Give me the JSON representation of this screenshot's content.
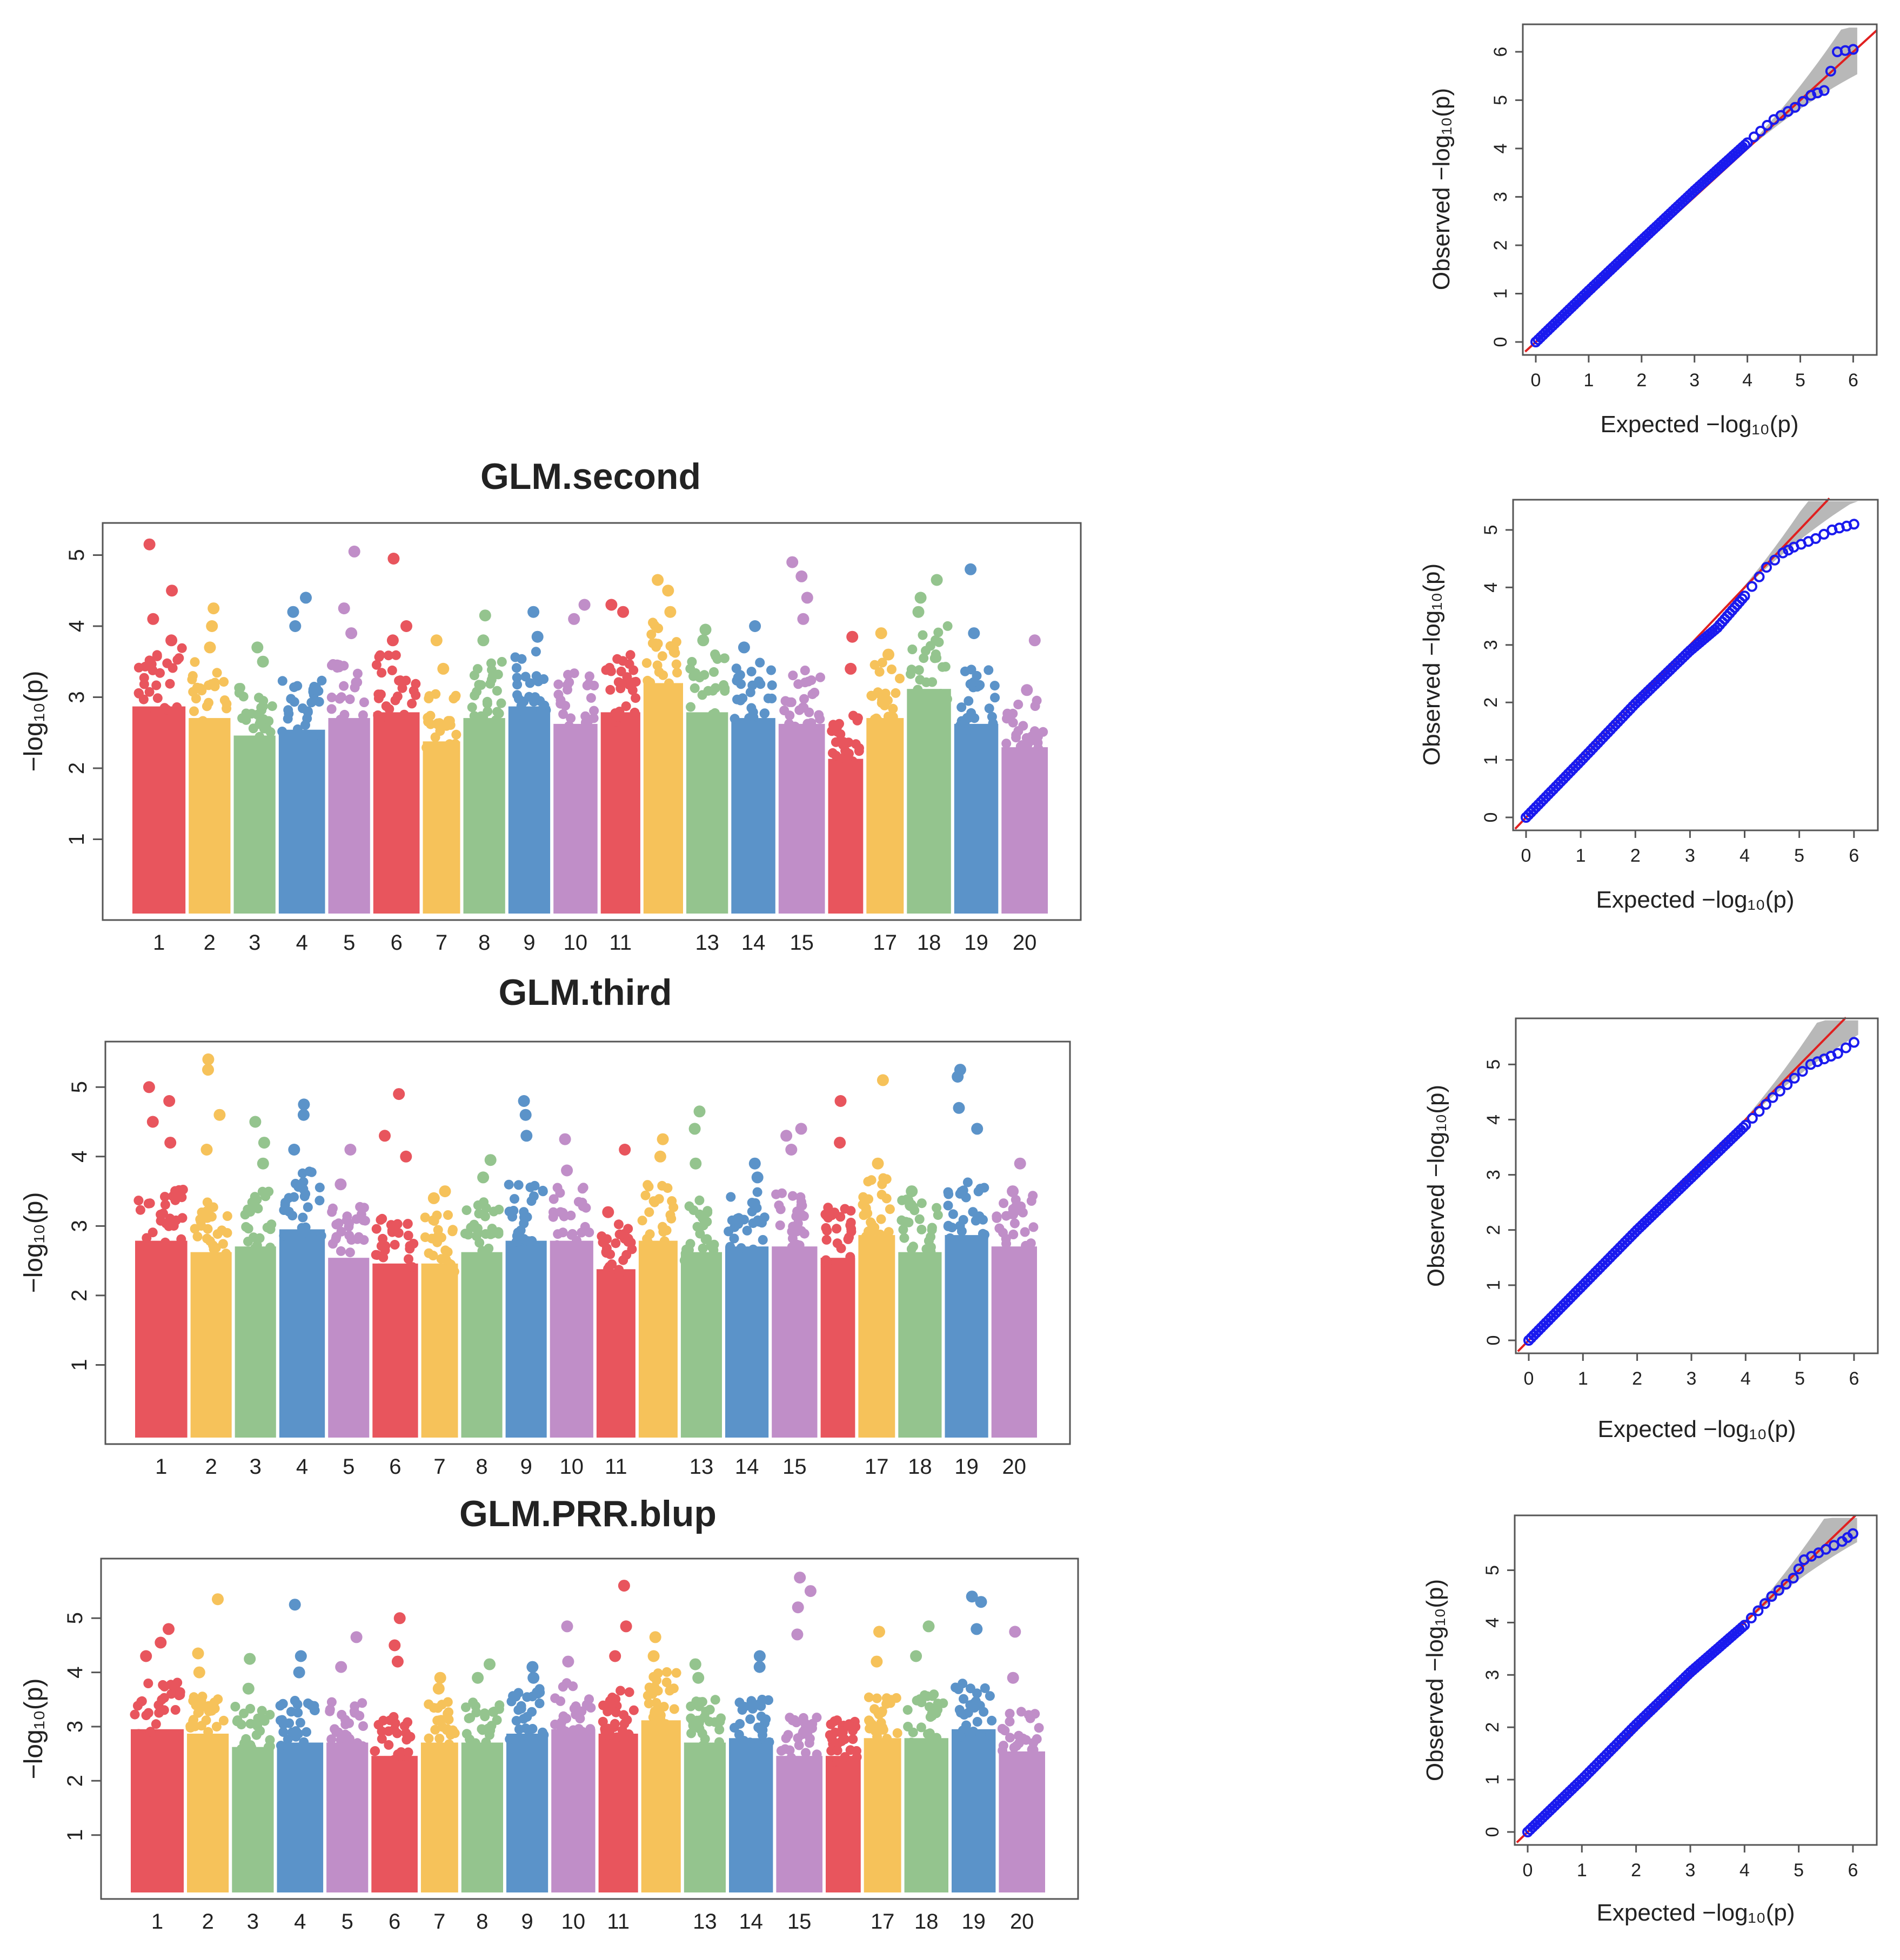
{
  "figure": {
    "colors": {
      "chromosome_cycle": [
        "#e8555d",
        "#f6c25a",
        "#94c48e",
        "#5b93c9",
        "#c08ec8"
      ],
      "qq_points": "#1a1aee",
      "qq_line": "#e02020",
      "qq_band": "#b8b8b8",
      "axis": "#555555"
    },
    "y_axis_label": "−log₁₀(p)",
    "qq_x_label": "Expected −log₁₀(p)",
    "qq_y_label": "Observed −log₁₀(p)"
  },
  "chart_data": [
    {
      "id": "manhattan-second",
      "type": "scatter",
      "title": "GLM.second",
      "ylabel": "−log₁₀(p)",
      "ylim": [
        0,
        5.3
      ],
      "y_ticks": [
        "1",
        "2",
        "3",
        "4",
        "5"
      ],
      "chromosomes": [
        "1",
        "2",
        "3",
        "4",
        "5",
        "6",
        "7",
        "8",
        "9",
        "10",
        "11",
        "12",
        "13",
        "14",
        "15",
        "16",
        "17",
        "18",
        "19",
        "20"
      ],
      "x_tick_labels": [
        "1",
        "2",
        "3",
        "4",
        "5",
        "6",
        "7",
        "8",
        "9",
        "10",
        "11",
        "",
        "13",
        "14",
        "15",
        "",
        "17",
        "18",
        "19",
        "20"
      ],
      "chrom_width": [
        1.25,
        1.0,
        1.0,
        1.1,
        1.0,
        1.1,
        0.9,
        1.0,
        1.0,
        1.05,
        0.95,
        0.95,
        1.0,
        1.05,
        1.1,
        0.85,
        0.9,
        1.05,
        1.05,
        1.1
      ],
      "chrom_column_top": [
        3.5,
        3.3,
        3.0,
        3.1,
        3.3,
        3.4,
        2.9,
        3.3,
        3.5,
        3.2,
        3.4,
        3.9,
        3.4,
        3.3,
        3.2,
        2.6,
        3.3,
        3.8,
        3.2,
        2.8
      ],
      "top_hits": [
        [
          5.15,
          4.5,
          4.1,
          3.8
        ],
        [
          4.25,
          4.0,
          3.7
        ],
        [
          3.7,
          3.5
        ],
        [
          4.4,
          4.2,
          4.0
        ],
        [
          5.05,
          4.25,
          3.9
        ],
        [
          4.95,
          4.0,
          3.8
        ],
        [
          3.8,
          3.4
        ],
        [
          4.15,
          3.8
        ],
        [
          4.2,
          3.85
        ],
        [
          4.3,
          4.1
        ],
        [
          4.3,
          4.2
        ],
        [
          4.65,
          4.5,
          4.2
        ],
        [
          3.95,
          3.8
        ],
        [
          4.0,
          3.7
        ],
        [
          4.9,
          4.7,
          4.4,
          4.1
        ],
        [
          3.85,
          3.4
        ],
        [
          3.9,
          3.6
        ],
        [
          4.65,
          4.4,
          4.2
        ],
        [
          4.8,
          3.9
        ],
        [
          3.8,
          3.1
        ]
      ]
    },
    {
      "id": "manhattan-third",
      "type": "scatter",
      "title": "GLM.third",
      "ylabel": "−log₁₀(p)",
      "ylim": [
        0,
        5.5
      ],
      "y_ticks": [
        "1",
        "2",
        "3",
        "4",
        "5"
      ],
      "chromosomes": [
        "1",
        "2",
        "3",
        "4",
        "5",
        "6",
        "7",
        "8",
        "9",
        "10",
        "11",
        "12",
        "13",
        "14",
        "15",
        "16",
        "17",
        "18",
        "19",
        "20"
      ],
      "x_tick_labels": [
        "1",
        "2",
        "3",
        "4",
        "5",
        "6",
        "7",
        "8",
        "9",
        "10",
        "11",
        "",
        "13",
        "14",
        "15",
        "",
        "17",
        "18",
        "19",
        "20"
      ],
      "chrom_width": [
        1.25,
        1.0,
        1.0,
        1.1,
        1.0,
        1.1,
        0.9,
        1.0,
        1.0,
        1.05,
        0.95,
        0.95,
        1.0,
        1.05,
        1.1,
        0.85,
        0.9,
        1.05,
        1.05,
        1.1
      ],
      "chrom_column_top": [
        3.4,
        3.2,
        3.3,
        3.6,
        3.1,
        3.0,
        3.0,
        3.2,
        3.4,
        3.4,
        2.9,
        3.4,
        3.2,
        3.3,
        3.3,
        3.1,
        3.5,
        3.2,
        3.5,
        3.3
      ],
      "top_hits": [
        [
          5.0,
          4.8,
          4.5,
          4.2
        ],
        [
          5.4,
          5.25,
          4.6,
          4.1
        ],
        [
          4.5,
          4.2,
          3.9
        ],
        [
          4.75,
          4.6,
          4.1
        ],
        [
          4.1,
          3.6
        ],
        [
          4.9,
          4.3,
          4.0
        ],
        [
          3.5,
          3.4
        ],
        [
          3.95,
          3.7
        ],
        [
          4.8,
          4.6,
          4.3
        ],
        [
          4.25,
          3.8
        ],
        [
          4.1,
          3.2
        ],
        [
          4.25,
          4.0
        ],
        [
          4.65,
          4.4,
          3.9
        ],
        [
          3.9,
          3.7
        ],
        [
          4.4,
          4.3,
          4.1
        ],
        [
          4.8,
          4.2
        ],
        [
          5.1,
          3.9
        ],
        [
          3.5,
          3.3
        ],
        [
          5.25,
          5.15,
          4.7,
          4.4
        ],
        [
          3.9,
          3.5
        ]
      ]
    },
    {
      "id": "manhattan-prr",
      "type": "scatter",
      "title": "GLM.PRR.blup",
      "ylabel": "−log₁₀(p)",
      "ylim": [
        0,
        5.9
      ],
      "y_ticks": [
        "1",
        "2",
        "3",
        "4",
        "5"
      ],
      "chromosomes": [
        "1",
        "2",
        "3",
        "4",
        "5",
        "6",
        "7",
        "8",
        "9",
        "10",
        "11",
        "12",
        "13",
        "14",
        "15",
        "16",
        "17",
        "18",
        "19",
        "20"
      ],
      "x_tick_labels": [
        "1",
        "2",
        "3",
        "4",
        "5",
        "6",
        "7",
        "8",
        "9",
        "10",
        "11",
        "",
        "13",
        "14",
        "15",
        "",
        "17",
        "18",
        "19",
        "20"
      ],
      "chrom_width": [
        1.25,
        1.0,
        1.0,
        1.1,
        1.0,
        1.1,
        0.9,
        1.0,
        1.0,
        1.05,
        0.95,
        0.95,
        1.0,
        1.05,
        1.1,
        0.85,
        0.9,
        1.05,
        1.05,
        1.1
      ],
      "chrom_column_top": [
        3.6,
        3.5,
        3.2,
        3.3,
        3.3,
        3.0,
        3.3,
        3.3,
        3.5,
        3.6,
        3.5,
        3.8,
        3.3,
        3.4,
        3.0,
        3.0,
        3.4,
        3.4,
        3.6,
        3.1
      ],
      "top_hits": [
        [
          4.8,
          4.55,
          4.3
        ],
        [
          5.35,
          4.35,
          4.0
        ],
        [
          4.25,
          3.7
        ],
        [
          5.25,
          4.3,
          4.0
        ],
        [
          4.65,
          4.1
        ],
        [
          5.0,
          4.5,
          4.2
        ],
        [
          3.9,
          3.7
        ],
        [
          4.15,
          3.9
        ],
        [
          4.1,
          3.9
        ],
        [
          4.85,
          4.2
        ],
        [
          5.6,
          4.85,
          4.3
        ],
        [
          4.65,
          4.3
        ],
        [
          4.15,
          3.9
        ],
        [
          4.3,
          4.1
        ],
        [
          5.75,
          5.5,
          5.2,
          4.7
        ],
        [
          3.0,
          2.9
        ],
        [
          4.75,
          4.2
        ],
        [
          4.85,
          4.3
        ],
        [
          5.4,
          5.3,
          4.8
        ],
        [
          4.75,
          3.9
        ]
      ]
    },
    {
      "id": "qq-1",
      "type": "scatter",
      "xlabel": "Expected −log₁₀(p)",
      "ylabel": "Observed −log₁₀(p)",
      "xlim": [
        0,
        6.2
      ],
      "ylim": [
        0,
        6.3
      ],
      "x_ticks": [
        "0",
        "1",
        "2",
        "3",
        "4",
        "5",
        "6"
      ],
      "y_ticks": [
        "0",
        "1",
        "2",
        "3",
        "4",
        "5",
        "6"
      ],
      "points": [
        [
          0,
          0
        ],
        [
          1,
          1.06
        ],
        [
          2,
          2.1
        ],
        [
          3,
          3.13
        ],
        [
          4,
          4.12
        ],
        [
          4.5,
          4.6
        ],
        [
          4.9,
          4.85
        ],
        [
          5.2,
          5.1
        ],
        [
          5.45,
          5.2
        ],
        [
          5.7,
          6.0
        ],
        [
          6.0,
          6.05
        ]
      ]
    },
    {
      "id": "qq-2",
      "type": "scatter",
      "xlabel": "Expected −log₁₀(p)",
      "ylabel": "Observed −log₁₀(p)",
      "xlim": [
        0,
        6.2
      ],
      "ylim": [
        0,
        5.3
      ],
      "x_ticks": [
        "0",
        "1",
        "2",
        "3",
        "4",
        "5",
        "6"
      ],
      "y_ticks": [
        "0",
        "1",
        "2",
        "3",
        "4",
        "5"
      ],
      "points": [
        [
          0,
          0
        ],
        [
          1,
          0.98
        ],
        [
          2,
          1.98
        ],
        [
          3,
          2.9
        ],
        [
          3.5,
          3.3
        ],
        [
          4,
          3.85
        ],
        [
          4.4,
          4.35
        ],
        [
          4.7,
          4.6
        ],
        [
          4.9,
          4.7
        ],
        [
          5.3,
          4.85
        ],
        [
          5.6,
          5.0
        ],
        [
          6.0,
          5.1
        ]
      ]
    },
    {
      "id": "qq-3",
      "type": "scatter",
      "xlabel": "Expected −log₁₀(p)",
      "ylabel": "Observed −log₁₀(p)",
      "xlim": [
        0,
        6.2
      ],
      "ylim": [
        0,
        5.6
      ],
      "x_ticks": [
        "0",
        "1",
        "2",
        "3",
        "4",
        "5",
        "6"
      ],
      "y_ticks": [
        "0",
        "1",
        "2",
        "3",
        "4",
        "5"
      ],
      "points": [
        [
          0,
          0
        ],
        [
          1,
          1.0
        ],
        [
          2,
          2.0
        ],
        [
          3,
          2.95
        ],
        [
          4,
          3.9
        ],
        [
          4.5,
          4.4
        ],
        [
          4.9,
          4.75
        ],
        [
          5.2,
          5.0
        ],
        [
          5.45,
          5.1
        ],
        [
          5.7,
          5.2
        ],
        [
          6.0,
          5.4
        ]
      ]
    },
    {
      "id": "qq-4",
      "type": "scatter",
      "xlabel": "Expected −log₁₀(p)",
      "ylabel": "Observed −log₁₀(p)",
      "xlim": [
        0,
        6.2
      ],
      "ylim": [
        0,
        5.8
      ],
      "x_ticks": [
        "0",
        "1",
        "2",
        "3",
        "4",
        "5",
        "6"
      ],
      "y_ticks": [
        "0",
        "1",
        "2",
        "3",
        "4",
        "5"
      ],
      "points": [
        [
          0,
          0
        ],
        [
          1,
          1.0
        ],
        [
          2,
          2.05
        ],
        [
          3,
          3.05
        ],
        [
          4,
          3.95
        ],
        [
          4.5,
          4.5
        ],
        [
          4.9,
          4.85
        ],
        [
          5.1,
          5.2
        ],
        [
          5.5,
          5.4
        ],
        [
          5.8,
          5.55
        ],
        [
          6.0,
          5.7
        ]
      ]
    }
  ]
}
